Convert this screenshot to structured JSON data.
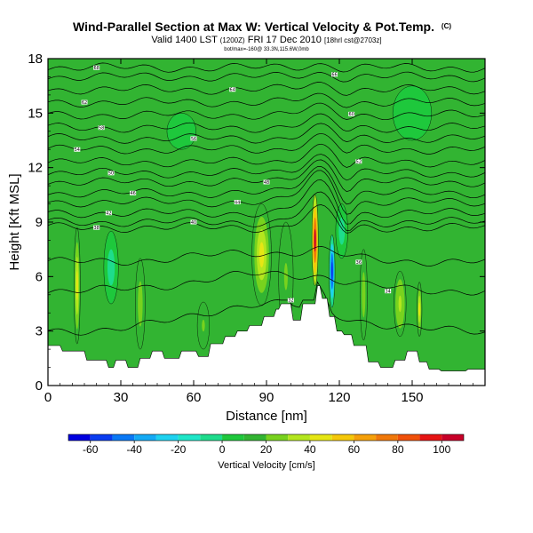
{
  "chart_data": {
    "type": "heatmap",
    "title": "Wind-Parallel Section at Max W: Vertical Velocity & Pot.Temp.",
    "title_mark": "(C)",
    "subtitle_main": "Valid 1400 LST",
    "subtitle_utc": "(1200Z)",
    "subtitle_date": "FRI 17 Dec 2010",
    "subtitle_run": "[18hrl cst@2703z]",
    "subtitle_small": "bot/max=-160@ 33.3N,115.6W,0mb",
    "xlabel": "Distance [nm]",
    "ylabel": "Height [Kft MSL]",
    "xlim": [
      0,
      180
    ],
    "ylim": [
      0,
      18
    ],
    "xticks": [
      0,
      30,
      60,
      90,
      120,
      150
    ],
    "yticks": [
      0,
      3,
      6,
      9,
      12,
      15,
      18
    ],
    "terrain": {
      "x": [
        0,
        5,
        6,
        15,
        16,
        24,
        25,
        27,
        28,
        32,
        33,
        37,
        38,
        42,
        43,
        47,
        48,
        54,
        55,
        61,
        62,
        66,
        67,
        72,
        73,
        77,
        78,
        82,
        83,
        88,
        89,
        93,
        94,
        95,
        96,
        100,
        101,
        104,
        105,
        110,
        111,
        112,
        113,
        115,
        116,
        118,
        119,
        121,
        122,
        125,
        126,
        131,
        132,
        136,
        137,
        142,
        143,
        147,
        148,
        152,
        153,
        156,
        157,
        161,
        162,
        165,
        166,
        172,
        173,
        180
      ],
      "y": [
        2.2,
        2.2,
        1.9,
        1.9,
        1.4,
        1.4,
        1.0,
        1.0,
        1.4,
        1.4,
        1.0,
        1.0,
        1.5,
        1.5,
        1.9,
        1.9,
        1.5,
        1.5,
        1.9,
        1.9,
        1.6,
        1.6,
        2.3,
        2.3,
        2.7,
        2.7,
        3.0,
        3.0,
        3.3,
        3.3,
        3.8,
        3.8,
        4.2,
        4.2,
        4.5,
        4.5,
        3.6,
        3.6,
        4.5,
        4.5,
        5.5,
        5.5,
        4.8,
        4.8,
        3.8,
        3.8,
        3.0,
        3.0,
        2.8,
        2.8,
        2.2,
        2.2,
        1.3,
        1.3,
        1.0,
        1.0,
        1.4,
        1.4,
        1.9,
        1.9,
        1.3,
        1.3,
        0.9,
        0.9,
        0.8,
        0.8,
        0.8,
        0.8,
        0.9,
        0.9
      ]
    },
    "background_velocity": 10,
    "updrafts": [
      {
        "x": 12,
        "y": 5.5,
        "half_width": 1.3,
        "half_height": 3.2,
        "value": 40
      },
      {
        "x": 26,
        "y": 6.5,
        "half_width": 3,
        "half_height": 2,
        "value": -5
      },
      {
        "x": 38,
        "y": 4.5,
        "half_width": 2,
        "half_height": 2.5,
        "value": 25
      },
      {
        "x": 64,
        "y": 3.3,
        "half_width": 2.5,
        "half_height": 1.3,
        "value": 20
      },
      {
        "x": 88,
        "y": 7.2,
        "half_width": 4,
        "half_height": 2.8,
        "value": 45
      },
      {
        "x": 98,
        "y": 6,
        "half_width": 3,
        "half_height": 3,
        "value": 20
      },
      {
        "x": 110,
        "y": 8,
        "half_width": 1.3,
        "half_height": 2.5,
        "value": 100
      },
      {
        "x": 117,
        "y": 6.3,
        "half_width": 1.2,
        "half_height": 2,
        "value": -60
      },
      {
        "x": 121,
        "y": 8.5,
        "half_width": 2.5,
        "half_height": 1.5,
        "value": -10
      },
      {
        "x": 130,
        "y": 5,
        "half_width": 1.5,
        "half_height": 2.5,
        "value": 25
      },
      {
        "x": 145,
        "y": 4.5,
        "half_width": 2.5,
        "half_height": 1.8,
        "value": 30
      },
      {
        "x": 153,
        "y": 4.2,
        "half_width": 1,
        "half_height": 1.5,
        "value": 45
      },
      {
        "x": 55,
        "y": 14,
        "half_width": 6,
        "half_height": 1,
        "value": 0
      },
      {
        "x": 150,
        "y": 15,
        "half_width": 8,
        "half_height": 1.5,
        "value": 0
      }
    ],
    "isentropes": [
      {
        "label": "32",
        "base": 3.0,
        "amp": 0.0,
        "flat": 8.0,
        "label_x": 100
      },
      {
        "label": "34",
        "base": 5.2,
        "amp": 0.3,
        "flat": 8.3,
        "label_x": 140
      },
      {
        "label": "36",
        "base": 6.8,
        "amp": 0.6,
        "flat": 8.5,
        "label_x": 128
      },
      {
        "label": "38",
        "base": 7.6,
        "amp": 1.0,
        "flat": 8.7,
        "label_x": 20
      },
      {
        "label": "40",
        "base": 8.2,
        "amp": 1.4,
        "flat": 9.0,
        "label_x": 60
      },
      {
        "label": "42",
        "base": 8.9,
        "amp": 1.6,
        "flat": 9.5,
        "label_x": 25
      },
      {
        "label": "44",
        "base": 9.6,
        "amp": 1.6,
        "flat": 10.1,
        "label_x": 78
      },
      {
        "label": "46",
        "base": 10.4,
        "amp": 1.4,
        "flat": 10.6,
        "label_x": 35
      },
      {
        "label": "48",
        "base": 11.0,
        "amp": 1.2,
        "flat": 11.2,
        "label_x": 90
      },
      {
        "label": "50",
        "base": 11.6,
        "amp": 1.0,
        "flat": 11.7,
        "label_x": 26
      },
      {
        "label": "52",
        "base": 12.3,
        "amp": 0.9,
        "flat": 12.3,
        "label_x": 128
      },
      {
        "label": "54",
        "base": 13.0,
        "amp": 0.7,
        "flat": 13.0,
        "label_x": 12
      },
      {
        "label": "56",
        "base": 13.6,
        "amp": 0.6,
        "flat": 13.6,
        "label_x": 60
      },
      {
        "label": "58",
        "base": 14.2,
        "amp": 0.5,
        "flat": 14.2,
        "label_x": 22
      },
      {
        "label": "60",
        "base": 14.9,
        "amp": 0.4,
        "flat": 14.9,
        "label_x": 125
      },
      {
        "label": "62",
        "base": 15.6,
        "amp": 0.3,
        "flat": 15.6,
        "label_x": 15
      },
      {
        "label": "64",
        "base": 16.3,
        "amp": 0.3,
        "flat": 16.3,
        "label_x": 76
      },
      {
        "label": "66",
        "base": 17.0,
        "amp": 0.2,
        "flat": 17.0,
        "label_x": 118
      },
      {
        "label": "68",
        "base": 17.5,
        "amp": 0.2,
        "flat": 17.5,
        "label_x": 20
      }
    ],
    "colorbar": {
      "label": "Vertical Velocity [cm/s]",
      "min": -70,
      "max": 110,
      "tick_values": [
        -60,
        -40,
        -20,
        0,
        20,
        40,
        60,
        80,
        100
      ],
      "tick_labels": [
        "-60",
        "-40",
        "-20",
        "0",
        "20",
        "40",
        "60",
        "80",
        "100"
      ],
      "bins": [
        {
          "from": -70,
          "to": -60,
          "color": "#0000e0"
        },
        {
          "from": -60,
          "to": -50,
          "color": "#0a3cf0"
        },
        {
          "from": -50,
          "to": -40,
          "color": "#0a78f5"
        },
        {
          "from": -40,
          "to": -30,
          "color": "#14aaf5"
        },
        {
          "from": -30,
          "to": -20,
          "color": "#1ed2f0"
        },
        {
          "from": -20,
          "to": -10,
          "color": "#1ee6c8"
        },
        {
          "from": -10,
          "to": 0,
          "color": "#1edc8c"
        },
        {
          "from": 0,
          "to": 10,
          "color": "#1ec83c"
        },
        {
          "from": 10,
          "to": 20,
          "color": "#32b432"
        },
        {
          "from": 20,
          "to": 30,
          "color": "#78d21e"
        },
        {
          "from": 30,
          "to": 40,
          "color": "#b4e61e"
        },
        {
          "from": 40,
          "to": 50,
          "color": "#e6e614"
        },
        {
          "from": 50,
          "to": 60,
          "color": "#f5c80a"
        },
        {
          "from": 60,
          "to": 70,
          "color": "#f5a00a"
        },
        {
          "from": 70,
          "to": 80,
          "color": "#f0780a"
        },
        {
          "from": 80,
          "to": 90,
          "color": "#f0500a"
        },
        {
          "from": 90,
          "to": 100,
          "color": "#e61414"
        },
        {
          "from": 100,
          "to": 110,
          "color": "#c80028"
        }
      ]
    }
  }
}
